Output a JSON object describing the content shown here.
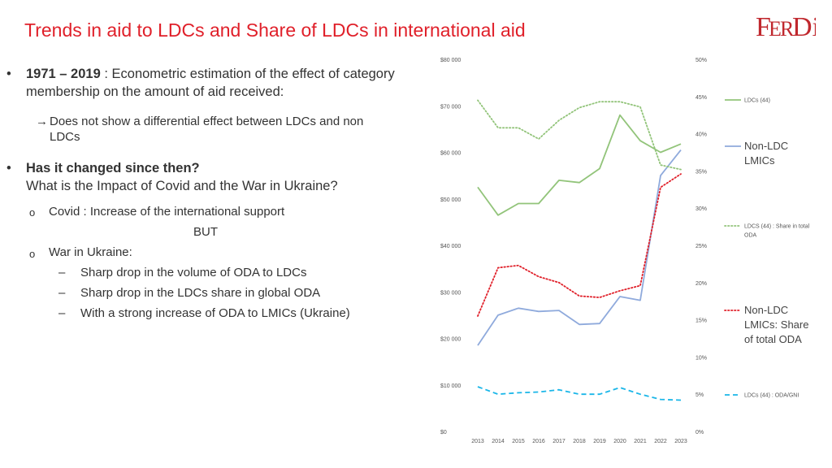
{
  "slide": {
    "title": "Trends in aid to LDCs and Share of LDCs in international aid",
    "logo_text": "FERDI",
    "bullet1": {
      "marker": "•",
      "bold": "1971 – 2019",
      "text": " : Econometric estimation of the effect of category membership on the amount of aid received:"
    },
    "bullet1_sub": {
      "marker": "→",
      "text": "Does not show a differential effect between LDCs and non LDCs"
    },
    "bullet2": {
      "marker": "•",
      "bold": "Has it changed since then?",
      "text": "What is the Impact of Covid and the War in Ukraine?"
    },
    "covid": {
      "marker": "o",
      "text": "Covid : Increase of the international support"
    },
    "but": "BUT",
    "war": {
      "marker": "o",
      "text": "War in Ukraine:"
    },
    "war_items": [
      {
        "marker": "–",
        "text": "Sharp drop in the volume of ODA to LDCs"
      },
      {
        "marker": "–",
        "text": "Sharp drop in the LDCs share in global ODA"
      },
      {
        "marker": "–",
        "text": "With a strong increase of ODA to LMICs (Ukraine)"
      }
    ]
  },
  "chart_data": {
    "type": "line",
    "x": [
      "2013",
      "2014",
      "2015",
      "2016",
      "2017",
      "2018",
      "2019",
      "2020",
      "2021",
      "2022",
      "2023"
    ],
    "left_axis": {
      "ticks": [
        "$0",
        "$10 000",
        "$20 000",
        "$30 000",
        "$40 000",
        "$50 000",
        "$60 000",
        "$70 000",
        "$80 000"
      ],
      "ylim": [
        0,
        80000
      ]
    },
    "right_axis": {
      "ticks": [
        "0%",
        "5%",
        "10%",
        "15%",
        "20%",
        "25%",
        "30%",
        "35%",
        "40%",
        "45%",
        "50%"
      ],
      "ylim": [
        0,
        50
      ]
    },
    "series": [
      {
        "name": "LDCs (44)",
        "axis": "left",
        "style": "solid",
        "color": "#92c47a",
        "values": [
          52500,
          46500,
          49000,
          49000,
          54000,
          53500,
          56500,
          68000,
          62500,
          60000,
          61800
        ]
      },
      {
        "name": "Non-LDC LMICs",
        "axis": "left",
        "style": "solid",
        "color": "#8faadc",
        "values": [
          18500,
          25000,
          26500,
          25800,
          26000,
          23000,
          23200,
          29000,
          28200,
          55000,
          60500
        ]
      },
      {
        "name": "LDCS (44) : Share in total ODA",
        "axis": "right",
        "style": "dotted",
        "color": "#92c47a",
        "values": [
          44.5,
          40.8,
          40.8,
          39.3,
          41.8,
          43.5,
          44.3,
          44.3,
          43.6,
          35.8,
          35.2
        ]
      },
      {
        "name": "Non-LDC LMICs: Share of total ODA",
        "axis": "right",
        "style": "dotted",
        "color": "#e0202a",
        "values": [
          15.5,
          22.0,
          22.3,
          20.8,
          20.0,
          18.2,
          18.0,
          18.9,
          19.6,
          32.8,
          34.6
        ]
      },
      {
        "name": "LDCs (44) : ODA/GNI",
        "axis": "right",
        "style": "dashed",
        "color": "#1ab6e8",
        "values": [
          6.0,
          5.0,
          5.2,
          5.3,
          5.6,
          5.0,
          5.0,
          5.9,
          5.0,
          4.3,
          4.2
        ]
      }
    ],
    "legend_placement": "right",
    "grid": false
  }
}
